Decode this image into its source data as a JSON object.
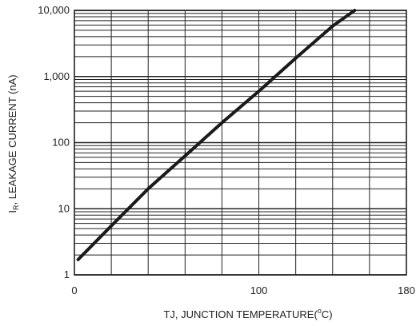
{
  "chart_data": {
    "type": "line",
    "x_scale": "linear",
    "y_scale": "log",
    "xlim": [
      0,
      180
    ],
    "ylim": [
      1,
      10000
    ],
    "x_ticks": [
      0,
      100,
      180
    ],
    "x_tick_labels": [
      "0",
      "100",
      "180"
    ],
    "y_ticks": [
      1,
      10,
      100,
      1000,
      10000
    ],
    "y_tick_labels": [
      "1",
      "10",
      "100",
      "1,000",
      "10,000"
    ],
    "x_label": {
      "main": "TJ, JUNCTION TEMPERATURE(",
      "sup": "o",
      "end": "C)"
    },
    "y_label": {
      "main": "I",
      "sub": "R",
      "rest": ", LEAKAGE CURRENT (nA)"
    },
    "grid": true,
    "series": [
      {
        "x": [
          2,
          20,
          40,
          60,
          80,
          100,
          120,
          140,
          152
        ],
        "values": [
          1.7,
          5.5,
          20,
          63,
          200,
          600,
          1900,
          5800,
          10000
        ]
      }
    ],
    "colors": {
      "grid": "#222222",
      "curve": "#1a1a1a",
      "text": "#222222"
    }
  }
}
